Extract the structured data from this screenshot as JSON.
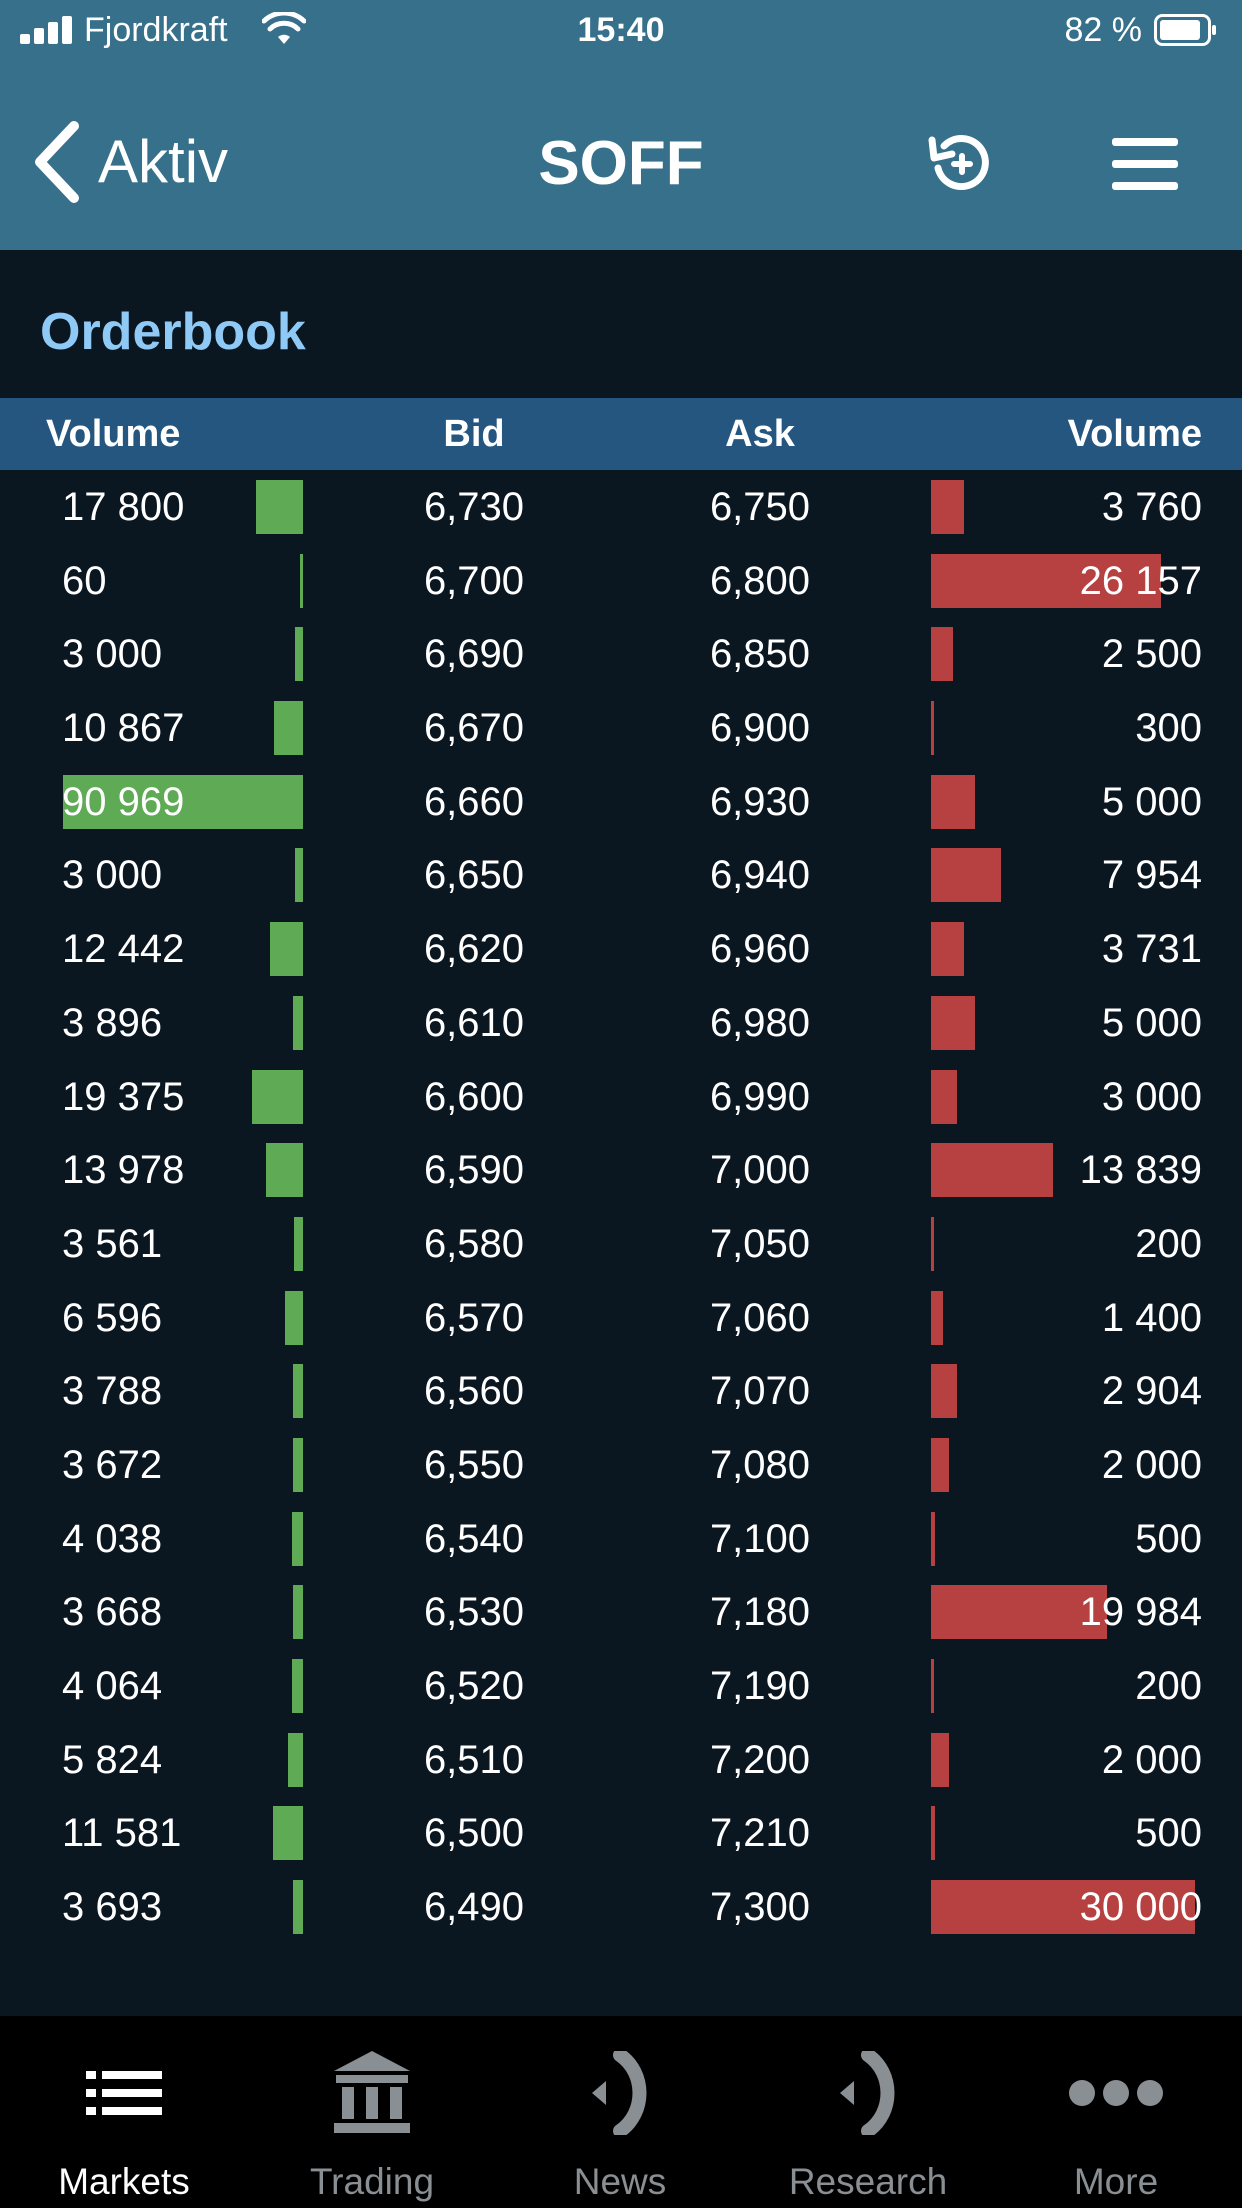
{
  "status_bar": {
    "carrier": "Fjordkraft",
    "time": "15:40",
    "battery": "82 %"
  },
  "nav": {
    "back_label": "Aktiv",
    "title": "SOFF",
    "icons": [
      "chevron-left-icon",
      "history-icon",
      "menu-icon"
    ]
  },
  "section": {
    "title": "Orderbook"
  },
  "columns": {
    "bid_volume": "Volume",
    "bid": "Bid",
    "ask": "Ask",
    "ask_volume": "Volume"
  },
  "orderbook": [
    {
      "bid_volume": "17 800",
      "bid": "6,730",
      "ask": "6,750",
      "ask_volume": "3 760",
      "bid_fill": 0.196,
      "ask_fill": 0.125
    },
    {
      "bid_volume": "60",
      "bid": "6,700",
      "ask": "6,800",
      "ask_volume": "26 157",
      "bid_fill": 0.001,
      "ask_fill": 0.872
    },
    {
      "bid_volume": "3 000",
      "bid": "6,690",
      "ask": "6,850",
      "ask_volume": "2 500",
      "bid_fill": 0.033,
      "ask_fill": 0.083
    },
    {
      "bid_volume": "10 867",
      "bid": "6,670",
      "ask": "6,900",
      "ask_volume": "300",
      "bid_fill": 0.119,
      "ask_fill": 0.01
    },
    {
      "bid_volume": "90 969",
      "bid": "6,660",
      "ask": "6,930",
      "ask_volume": "5 000",
      "bid_fill": 1.0,
      "ask_fill": 0.167
    },
    {
      "bid_volume": "3 000",
      "bid": "6,650",
      "ask": "6,940",
      "ask_volume": "7 954",
      "bid_fill": 0.033,
      "ask_fill": 0.265
    },
    {
      "bid_volume": "12 442",
      "bid": "6,620",
      "ask": "6,960",
      "ask_volume": "3 731",
      "bid_fill": 0.137,
      "ask_fill": 0.124
    },
    {
      "bid_volume": "3 896",
      "bid": "6,610",
      "ask": "6,980",
      "ask_volume": "5 000",
      "bid_fill": 0.043,
      "ask_fill": 0.167
    },
    {
      "bid_volume": "19 375",
      "bid": "6,600",
      "ask": "6,990",
      "ask_volume": "3 000",
      "bid_fill": 0.213,
      "ask_fill": 0.1
    },
    {
      "bid_volume": "13 978",
      "bid": "6,590",
      "ask": "7,000",
      "ask_volume": "13 839",
      "bid_fill": 0.154,
      "ask_fill": 0.461
    },
    {
      "bid_volume": "3 561",
      "bid": "6,580",
      "ask": "7,050",
      "ask_volume": "200",
      "bid_fill": 0.039,
      "ask_fill": 0.007
    },
    {
      "bid_volume": "6 596",
      "bid": "6,570",
      "ask": "7,060",
      "ask_volume": "1 400",
      "bid_fill": 0.073,
      "ask_fill": 0.047
    },
    {
      "bid_volume": "3 788",
      "bid": "6,560",
      "ask": "7,070",
      "ask_volume": "2 904",
      "bid_fill": 0.042,
      "ask_fill": 0.097
    },
    {
      "bid_volume": "3 672",
      "bid": "6,550",
      "ask": "7,080",
      "ask_volume": "2 000",
      "bid_fill": 0.04,
      "ask_fill": 0.067
    },
    {
      "bid_volume": "4 038",
      "bid": "6,540",
      "ask": "7,100",
      "ask_volume": "500",
      "bid_fill": 0.044,
      "ask_fill": 0.017
    },
    {
      "bid_volume": "3 668",
      "bid": "6,530",
      "ask": "7,180",
      "ask_volume": "19 984",
      "bid_fill": 0.04,
      "ask_fill": 0.666
    },
    {
      "bid_volume": "4 064",
      "bid": "6,520",
      "ask": "7,190",
      "ask_volume": "200",
      "bid_fill": 0.045,
      "ask_fill": 0.007
    },
    {
      "bid_volume": "5 824",
      "bid": "6,510",
      "ask": "7,200",
      "ask_volume": "2 000",
      "bid_fill": 0.064,
      "ask_fill": 0.067
    },
    {
      "bid_volume": "11 581",
      "bid": "6,500",
      "ask": "7,210",
      "ask_volume": "500",
      "bid_fill": 0.127,
      "ask_fill": 0.017
    },
    {
      "bid_volume": "3 693",
      "bid": "6,490",
      "ask": "7,300",
      "ask_volume": "30 000",
      "bid_fill": 0.041,
      "ask_fill": 1.0
    }
  ],
  "tabs": [
    {
      "label": "Markets",
      "icon": "list-icon",
      "active": true
    },
    {
      "label": "Trading",
      "icon": "bank-icon",
      "active": false
    },
    {
      "label": "News",
      "icon": "broadcast-icon",
      "active": false
    },
    {
      "label": "Research",
      "icon": "broadcast-icon",
      "active": false
    },
    {
      "label": "More",
      "icon": "more-icon",
      "active": false
    }
  ],
  "colors": {
    "header_bg": "#36708b",
    "column_header_bg": "#245680",
    "page_bg": "#0a1620",
    "section_title": "#8fc9f5",
    "bid_bar": "#5faa55",
    "ask_bar": "#b74040",
    "tab_active": "#ffffff",
    "tab_inactive": "#8a8f94"
  }
}
